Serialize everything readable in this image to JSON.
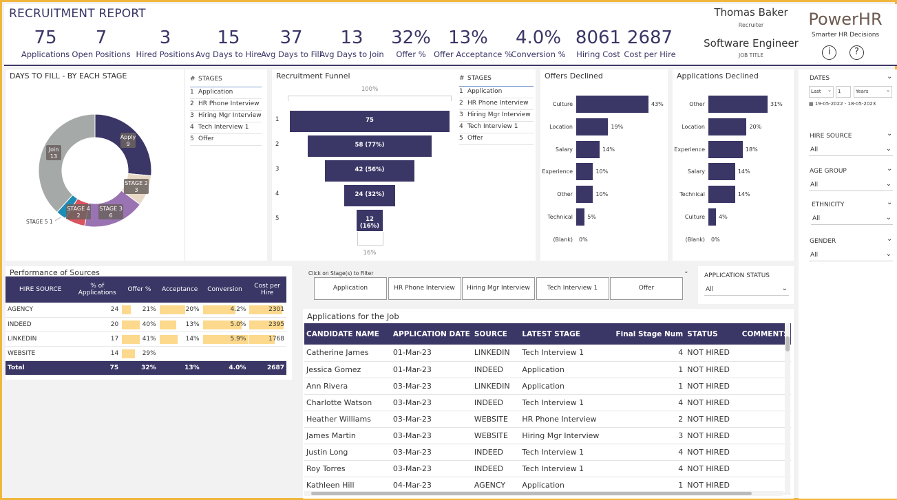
{
  "header": {
    "title": "RECRUITMENT REPORT",
    "kpis": [
      {
        "value": "75",
        "label": "Applications"
      },
      {
        "value": "7",
        "label": "Open Positions"
      },
      {
        "value": "3",
        "label": "Hired Positions"
      },
      {
        "value": "15",
        "label": "Avg Days to Hire"
      },
      {
        "value": "37",
        "label": "Avg Days to Fill"
      },
      {
        "value": "13",
        "label": "Avg Days to Join"
      },
      {
        "value": "32%",
        "label": "Offer %"
      },
      {
        "value": "13%",
        "label": "Offer Acceptance %"
      },
      {
        "value": "4.0%",
        "label": "Conversion %"
      },
      {
        "value": "8061",
        "label": "Hiring Cost"
      },
      {
        "value": "2687",
        "label": "Cost per Hire"
      }
    ],
    "user_name": "Thomas Baker",
    "user_role": "Recruiter",
    "job_title_value": "Software Engineer",
    "job_title_label": "JOB TITLE",
    "brand": "PowerHR",
    "tagline": "Smarter HR Decisions",
    "info_icon": "i",
    "help_icon": "?"
  },
  "donut": {
    "title": "DAYS TO FILL - BY EACH STAGE",
    "segments": [
      {
        "name": "Apply",
        "value": 9,
        "color": "#3a3666"
      },
      {
        "name": "STAGE 2",
        "value": 3,
        "color": "#e8d9c6"
      },
      {
        "name": "STAGE 3",
        "value": 6,
        "color": "#9a73b3"
      },
      {
        "name": "STAGE 4",
        "value": 2,
        "color": "#d9545e"
      },
      {
        "name": "STAGE 5",
        "value": 1,
        "color": "#1f8cb5"
      },
      {
        "name": "Join",
        "value": 13,
        "color": "#a5aaa8"
      }
    ],
    "stage5_label": "STAGE 5 1"
  },
  "stages_table": {
    "col_num": "#",
    "col_name": "STAGES",
    "rows": [
      {
        "n": "1",
        "name": "Application"
      },
      {
        "n": "2",
        "name": "HR Phone Interview"
      },
      {
        "n": "3",
        "name": "Hiring Mgr Interview"
      },
      {
        "n": "4",
        "name": "Tech Interview 1"
      },
      {
        "n": "5",
        "name": "Offer"
      }
    ]
  },
  "funnel": {
    "title": "Recruitment Funnel",
    "top_label": "100%",
    "bottom_label": "16%",
    "steps": [
      {
        "n": "1",
        "value": 75,
        "label": "75"
      },
      {
        "n": "2",
        "value": 58,
        "label": "58 (77%)"
      },
      {
        "n": "3",
        "value": 42,
        "label": "42 (56%)"
      },
      {
        "n": "4",
        "value": 24,
        "label": "24 (32%)"
      },
      {
        "n": "5",
        "value": 12,
        "label": "12 (16%)"
      }
    ]
  },
  "chart_data": [
    {
      "type": "bar",
      "title": "Offers Declined",
      "categories": [
        "Culture",
        "Location",
        "Salary",
        "Experience",
        "Other",
        "Technical",
        "(Blank)"
      ],
      "values": [
        43,
        19,
        14,
        10,
        10,
        5,
        0
      ],
      "labels": [
        "43%",
        "19%",
        "14%",
        "10%",
        "10%",
        "5%",
        "0%"
      ]
    },
    {
      "type": "bar",
      "title": "Applications Declined",
      "categories": [
        "Other",
        "Location",
        "Experience",
        "Salary",
        "Technical",
        "Culture",
        "(Blank)"
      ],
      "values": [
        31,
        20,
        18,
        14,
        14,
        4,
        0
      ],
      "labels": [
        "31%",
        "20%",
        "18%",
        "14%",
        "14%",
        "4%",
        "0%"
      ]
    }
  ],
  "filters": {
    "dates_label": "DATES",
    "date_mode": "Last",
    "date_count": "1",
    "date_unit": "Years",
    "date_range": "19-05-2022 - 18-05-2023",
    "hire_source_label": "HIRE SOURCE",
    "hire_source_value": "All",
    "age_group_label": "AGE GROUP",
    "age_group_value": "All",
    "ethnicity_label": "ETHNICITY",
    "ethnicity_value": "All",
    "gender_label": "GENDER",
    "gender_value": "All"
  },
  "performance": {
    "title": "Performance of Sources",
    "columns": [
      "HIRE SOURCE",
      "% of Applications",
      "Offer %",
      "Acceptance",
      "Conversion",
      "Cost per Hire"
    ],
    "rows": [
      {
        "source": "AGENCY",
        "apps": "24",
        "offer": "21%",
        "offer_v": 21,
        "accept": "20%",
        "accept_v": 20,
        "conv": "4.2%",
        "conv_v": 4.2,
        "cost": "2301",
        "cost_v": 2301
      },
      {
        "source": "INDEED",
        "apps": "20",
        "offer": "40%",
        "offer_v": 40,
        "accept": "13%",
        "accept_v": 13,
        "conv": "5.0%",
        "conv_v": 5.0,
        "cost": "2395",
        "cost_v": 2395
      },
      {
        "source": "LINKEDIN",
        "apps": "17",
        "offer": "41%",
        "offer_v": 41,
        "accept": "14%",
        "accept_v": 14,
        "conv": "5.9%",
        "conv_v": 5.9,
        "cost": "1768",
        "cost_v": 1768
      },
      {
        "source": "WEBSITE",
        "apps": "14",
        "offer": "29%",
        "offer_v": 29,
        "accept": "",
        "accept_v": 0,
        "conv": "",
        "conv_v": 0,
        "cost": "",
        "cost_v": 0
      }
    ],
    "total": {
      "source": "Total",
      "apps": "75",
      "offer": "32%",
      "accept": "13%",
      "conv": "4.0%",
      "cost": "2687"
    }
  },
  "stage_filter": {
    "hint": "Click on Stage(s) to Filter",
    "buttons": [
      "Application",
      "HR Phone Interview",
      "Hiring Mgr Interview",
      "Tech Interview 1",
      "Offer"
    ]
  },
  "app_status": {
    "label": "APPLICATION STATUS",
    "value": "All"
  },
  "applications": {
    "title": "Applications for the Job",
    "columns": [
      "CANDIDATE NAME",
      "APPLICATION DATE",
      "SOURCE",
      "LATEST STAGE",
      "Final Stage Num",
      "STATUS",
      "COMMENTS"
    ],
    "rows": [
      [
        "Catherine James",
        "01-Mar-23",
        "LINKEDIN",
        "Tech Interview 1",
        "4",
        "NOT HIRED"
      ],
      [
        "Jessica Gomez",
        "01-Mar-23",
        "INDEED",
        "Application",
        "1",
        "NOT HIRED"
      ],
      [
        "Ann Rivera",
        "03-Mar-23",
        "LINKEDIN",
        "Application",
        "1",
        "NOT HIRED"
      ],
      [
        "Charlotte Watson",
        "03-Mar-23",
        "INDEED",
        "Tech Interview 1",
        "4",
        "NOT HIRED"
      ],
      [
        "Heather Williams",
        "03-Mar-23",
        "WEBSITE",
        "HR Phone Interview",
        "2",
        "NOT HIRED"
      ],
      [
        "James Martin",
        "03-Mar-23",
        "WEBSITE",
        "Hiring Mgr Interview",
        "3",
        "NOT HIRED"
      ],
      [
        "Justin Long",
        "03-Mar-23",
        "INDEED",
        "Tech Interview 1",
        "4",
        "NOT HIRED"
      ],
      [
        "Roy Torres",
        "03-Mar-23",
        "INDEED",
        "Tech Interview 1",
        "4",
        "NOT HIRED"
      ],
      [
        "Kathleen Hill",
        "04-Mar-23",
        "AGENCY",
        "Application",
        "1",
        "NOT HIRED"
      ]
    ]
  }
}
